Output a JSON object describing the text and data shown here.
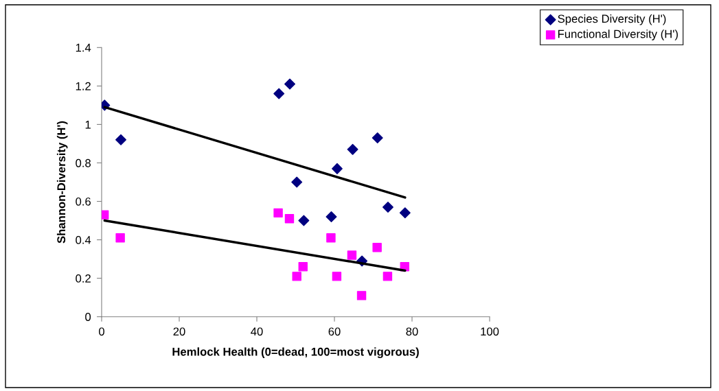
{
  "chart_data": {
    "type": "scatter",
    "xlabel": "Hemlock Health (0=dead, 100=most vigorous)",
    "ylabel": "Shannon-Diversity (H')",
    "xlim": [
      0,
      100
    ],
    "xticks": [
      0,
      20,
      40,
      60,
      80,
      100
    ],
    "ylim": [
      0,
      1.4
    ],
    "yticks": [
      0,
      {
        "value": 0.2,
        "label": "0.2"
      },
      {
        "value": 0.4,
        "label": "0.4"
      },
      {
        "value": 0.6,
        "label": "0.6"
      },
      {
        "value": 0.8,
        "label": "0.8"
      },
      1,
      {
        "value": 1.2,
        "label": "1.2"
      },
      {
        "value": 1.4,
        "label": "1.4"
      }
    ],
    "grid": false,
    "legend": "top right",
    "series": [
      {
        "name": "Species Diversity (H')",
        "color": "#000080",
        "marker": "diamond",
        "x": [
          0.76,
          4.96,
          45.7,
          48.5,
          50.3,
          52.1,
          59.2,
          60.7,
          64.7,
          67.1,
          71.1,
          73.8,
          78.2
        ],
        "values": [
          1.1,
          0.92,
          1.16,
          1.21,
          0.7,
          0.5,
          0.52,
          0.77,
          0.87,
          0.29,
          0.93,
          0.57,
          0.54
        ]
      },
      {
        "name": "Functional Diversity (H')",
        "color": "#ff00ff",
        "marker": "square",
        "x": [
          0.65,
          4.8,
          45.5,
          48.4,
          50.3,
          51.9,
          59.1,
          60.6,
          64.5,
          67.0,
          71.0,
          73.7,
          78.1
        ],
        "values": [
          0.53,
          0.41,
          0.54,
          0.51,
          0.21,
          0.26,
          0.41,
          0.21,
          0.32,
          0.11,
          0.36,
          0.21,
          0.26
        ]
      },
      {
        "type": "line",
        "color": "#000000",
        "marker": "none",
        "x": [
          0.76,
          78.2
        ],
        "values": [
          1.09,
          0.62
        ]
      },
      {
        "type": "line",
        "color": "#000000",
        "marker": "none",
        "x": [
          0.76,
          78.2
        ],
        "values": [
          0.5,
          0.24
        ]
      }
    ]
  }
}
